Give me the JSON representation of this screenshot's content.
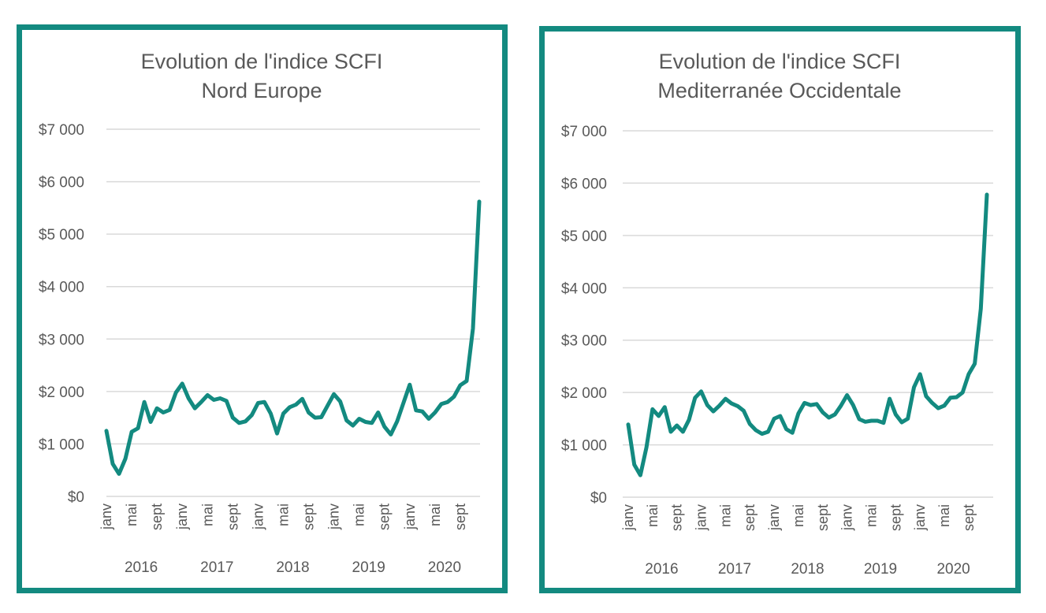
{
  "chart_data": [
    {
      "type": "line",
      "title": [
        "Evolution de l'indice SCFI",
        "Nord Europe"
      ],
      "ylim": [
        0,
        7000
      ],
      "yticks": [
        "$0",
        "$1 000",
        "$2 000",
        "$3 000",
        "$4 000",
        "$5 000",
        "$6 000",
        "$7 000"
      ],
      "month_labels": [
        "janv",
        "mai",
        "sept",
        "janv",
        "mai",
        "sept",
        "janv",
        "mai",
        "sept",
        "janv",
        "mai",
        "sept",
        "janv",
        "mai",
        "sept"
      ],
      "years": [
        "2016",
        "2017",
        "2018",
        "2019",
        "2020"
      ],
      "grid": true,
      "legend": "none",
      "color": "#138a80",
      "series": [
        {
          "values": [
            1250,
            620,
            430,
            720,
            1230,
            1300,
            1800,
            1420,
            1680,
            1600,
            1650,
            1980,
            2150,
            1870,
            1680,
            1800,
            1930,
            1840,
            1870,
            1820,
            1500,
            1400,
            1430,
            1550,
            1780,
            1800,
            1580,
            1200,
            1580,
            1700,
            1750,
            1860,
            1600,
            1500,
            1510,
            1730,
            1950,
            1810,
            1450,
            1350,
            1480,
            1420,
            1400,
            1600,
            1330,
            1180,
            1430,
            1780,
            2130,
            1640,
            1620,
            1480,
            1600,
            1760,
            1800,
            1900,
            2120,
            2200,
            3200,
            5620
          ]
        }
      ]
    },
    {
      "type": "line",
      "title": [
        "Evolution de l'indice SCFI",
        "Mediterranée Occidentale"
      ],
      "ylim": [
        0,
        7000
      ],
      "yticks": [
        "$0",
        "$1 000",
        "$2 000",
        "$3 000",
        "$4 000",
        "$5 000",
        "$6 000",
        "$7 000"
      ],
      "month_labels": [
        "janv",
        "mai",
        "sept",
        "janv",
        "mai",
        "sept",
        "janv",
        "mai",
        "sept",
        "janv",
        "mai",
        "sept",
        "janv",
        "mai",
        "sept"
      ],
      "years": [
        "2016",
        "2017",
        "2018",
        "2019",
        "2020"
      ],
      "grid": true,
      "legend": "none",
      "color": "#138a80",
      "series": [
        {
          "values": [
            1390,
            620,
            420,
            950,
            1680,
            1550,
            1720,
            1250,
            1370,
            1250,
            1480,
            1900,
            2020,
            1760,
            1640,
            1750,
            1880,
            1790,
            1740,
            1650,
            1400,
            1280,
            1210,
            1250,
            1500,
            1550,
            1300,
            1230,
            1600,
            1800,
            1760,
            1780,
            1620,
            1520,
            1580,
            1750,
            1950,
            1760,
            1490,
            1440,
            1460,
            1460,
            1420,
            1880,
            1580,
            1430,
            1500,
            2100,
            2350,
            1930,
            1800,
            1700,
            1750,
            1900,
            1910,
            2000,
            2350,
            2550,
            3600,
            5780
          ]
        }
      ]
    }
  ]
}
